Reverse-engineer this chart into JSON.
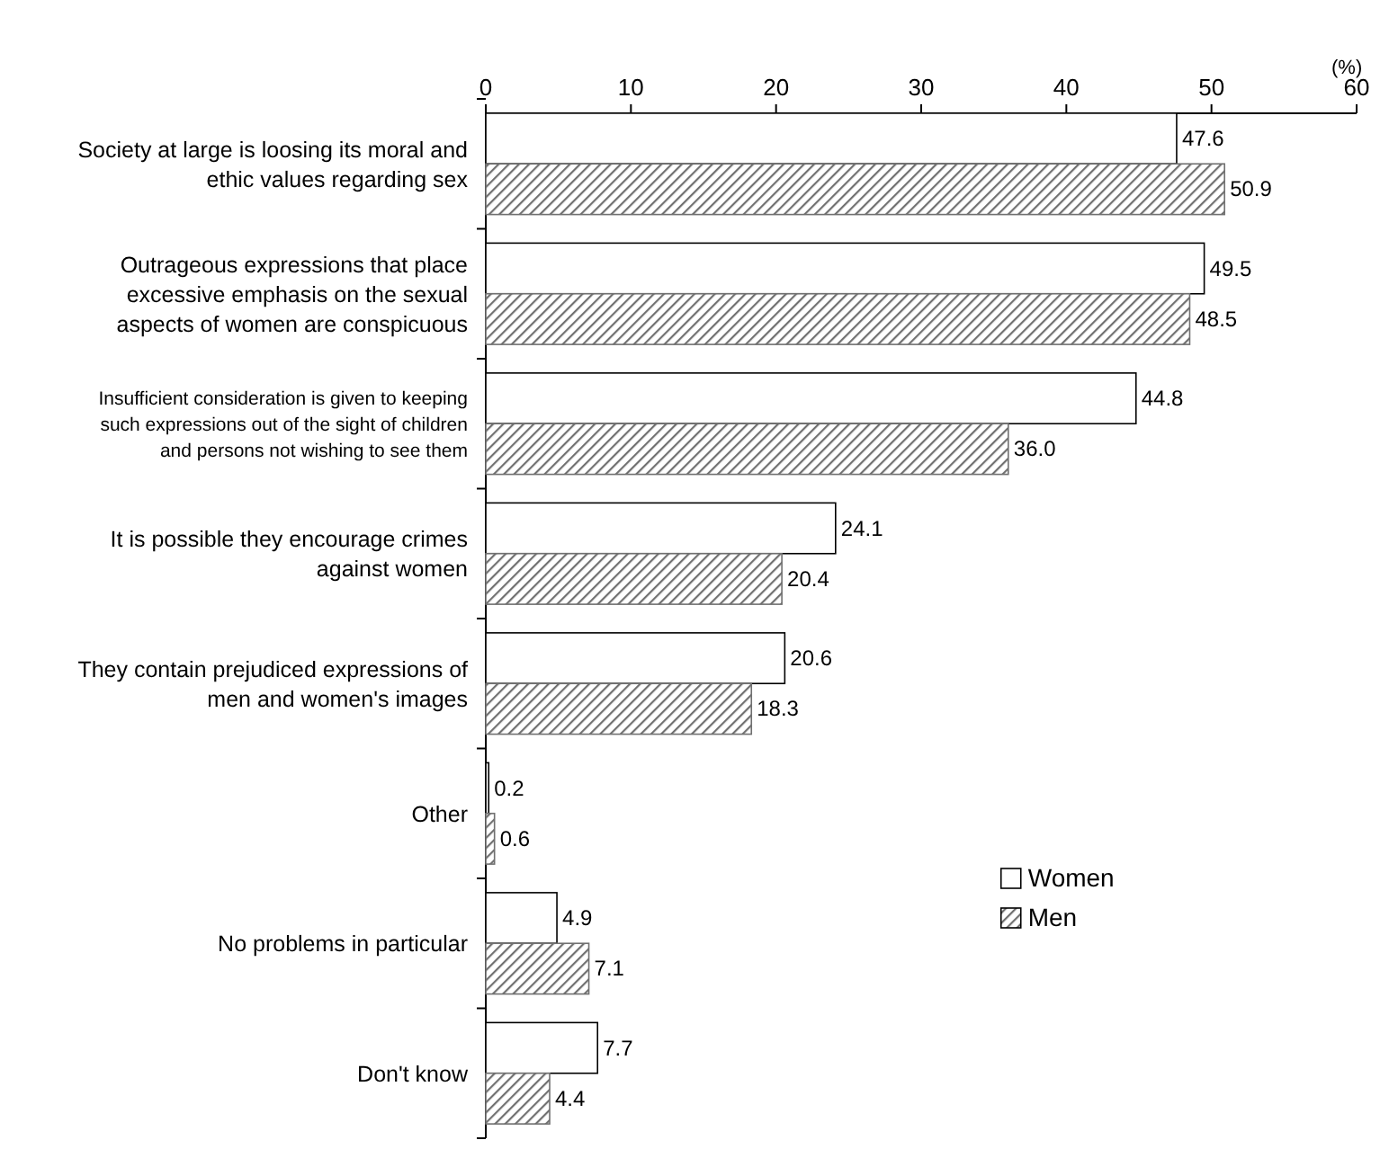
{
  "chart_data": {
    "type": "bar",
    "orientation": "horizontal",
    "categories": [
      "Society at large is loosing its moral and\nethic values regarding sex",
      "Outrageous expressions that place\nexcessive emphasis on the sexual\naspects of women are conspicuous",
      "Insufficient consideration is given to keeping\nsuch expressions out of the sight of children\nand persons not wishing to see them",
      "It is possible they encourage crimes\nagainst women",
      "They contain prejudiced expressions of\nmen and women's images",
      "Other",
      "No problems in particular",
      "Don't know"
    ],
    "series": [
      {
        "name": "Women",
        "color": "#ffffff",
        "values": [
          47.6,
          49.5,
          44.8,
          24.1,
          20.6,
          0.2,
          4.9,
          7.7
        ],
        "value_labels": [
          "47.6",
          "49.5",
          "44.8",
          "24.1",
          "20.6",
          "0.2",
          "4.9",
          "7.7"
        ]
      },
      {
        "name": "Men",
        "color": "#707070",
        "values": [
          50.9,
          48.5,
          36.0,
          20.4,
          18.3,
          0.6,
          7.1,
          4.4
        ],
        "value_labels": [
          "50.9",
          "48.5",
          "36.0",
          "20.4",
          "18.3",
          "0.6",
          "7.1",
          "4.4"
        ]
      }
    ],
    "xlim": [
      0,
      60
    ],
    "xticks": [
      0,
      10,
      20,
      30,
      40,
      50,
      60
    ],
    "annotations": [
      "(%)"
    ],
    "legend": "bottom right",
    "grid": false
  }
}
